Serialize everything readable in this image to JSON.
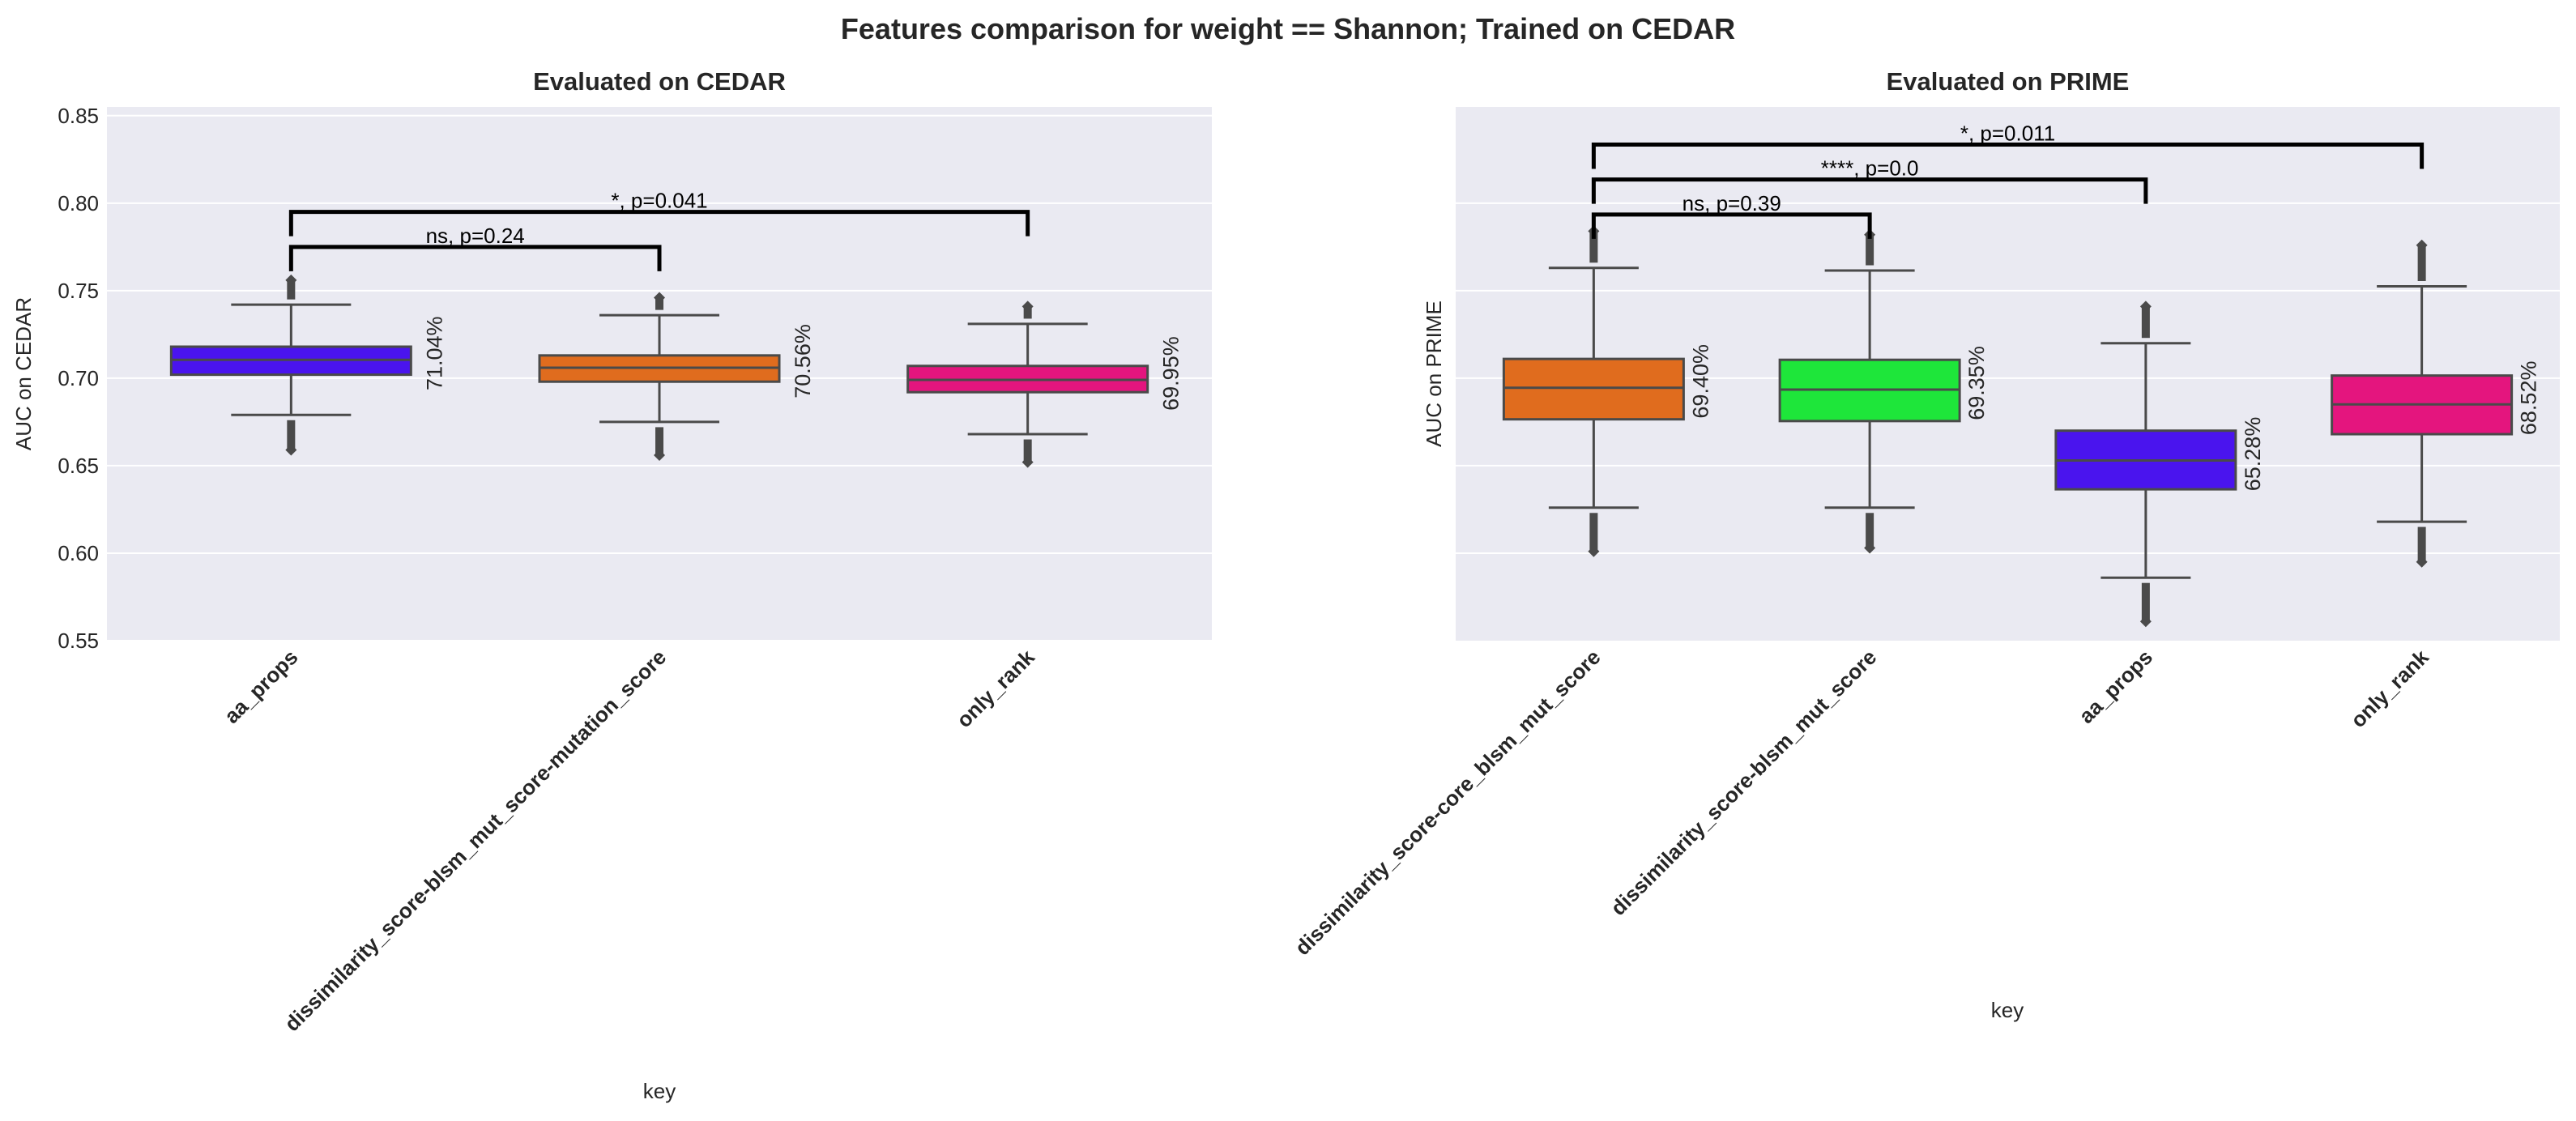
{
  "title": "Features comparison for weight == Shannon; Trained on CEDAR",
  "colors": {
    "background": "#eaeaf2",
    "grid": "#ffffff",
    "line": "#4a4a4a",
    "bracket": "#000000"
  },
  "chart_data": [
    {
      "type": "box",
      "title": "Evaluated on CEDAR",
      "xlabel": "key",
      "ylabel": "AUC on CEDAR",
      "ylim": [
        0.55,
        0.855
      ],
      "yticks": [
        0.55,
        0.6,
        0.65,
        0.7,
        0.75,
        0.8,
        0.85
      ],
      "ytick_labels": [
        "0.55",
        "0.60",
        "0.65",
        "0.70",
        "0.75",
        "0.80",
        "0.85"
      ],
      "categories": [
        "aa_props",
        "dissimilarity_score-blsm_mut_score-mutation_score",
        "only_rank"
      ],
      "boxes": [
        {
          "q1": 0.702,
          "median": 0.7105,
          "q3": 0.718,
          "whisker_low": 0.679,
          "whisker_high": 0.742,
          "fliers_low": [
            0.659,
            0.676
          ],
          "fliers_high": [
            0.745,
            0.756
          ],
          "color": "#4a14ee",
          "label": "71.04%"
        },
        {
          "q1": 0.698,
          "median": 0.706,
          "q3": 0.713,
          "whisker_low": 0.675,
          "whisker_high": 0.736,
          "fliers_low": [
            0.656,
            0.672
          ],
          "fliers_high": [
            0.739,
            0.746
          ],
          "color": "#e06c1e",
          "label": "70.56%"
        },
        {
          "q1": 0.692,
          "median": 0.699,
          "q3": 0.707,
          "whisker_low": 0.668,
          "whisker_high": 0.731,
          "fliers_low": [
            0.652,
            0.665
          ],
          "fliers_high": [
            0.734,
            0.741
          ],
          "color": "#e4157e",
          "label": "69.95%"
        }
      ],
      "annotations": [
        {
          "from": 0,
          "to": 1,
          "y": 0.775,
          "text": "ns, p=0.24"
        },
        {
          "from": 0,
          "to": 2,
          "y": 0.795,
          "text": "*, p=0.041"
        }
      ]
    },
    {
      "type": "box",
      "title": "Evaluated on PRIME",
      "xlabel": "key",
      "ylabel": "AUC on PRIME",
      "ylim": [
        0.55,
        0.855
      ],
      "yticks": [
        0.6,
        0.65,
        0.7,
        0.75,
        0.8
      ],
      "categories": [
        "dissimilarity_score-core_blsm_mut_score",
        "dissimilarity_score-blsm_mut_score",
        "aa_props",
        "only_rank"
      ],
      "boxes": [
        {
          "q1": 0.6765,
          "median": 0.6945,
          "q3": 0.711,
          "whisker_low": 0.626,
          "whisker_high": 0.763,
          "fliers_low": [
            0.601,
            0.623
          ],
          "fliers_high": [
            0.766,
            0.784
          ],
          "color": "#e06c1e",
          "label": "69.40%"
        },
        {
          "q1": 0.6755,
          "median": 0.6935,
          "q3": 0.7105,
          "whisker_low": 0.626,
          "whisker_high": 0.7615,
          "fliers_low": [
            0.603,
            0.623
          ],
          "fliers_high": [
            0.7645,
            0.782
          ],
          "color": "#1ee63a",
          "label": "69.35%"
        },
        {
          "q1": 0.6365,
          "median": 0.653,
          "q3": 0.67,
          "whisker_low": 0.586,
          "whisker_high": 0.72,
          "fliers_low": [
            0.561,
            0.583
          ],
          "fliers_high": [
            0.723,
            0.741
          ],
          "color": "#4a14ee",
          "label": "65.28%"
        },
        {
          "q1": 0.668,
          "median": 0.685,
          "q3": 0.7015,
          "whisker_low": 0.618,
          "whisker_high": 0.7525,
          "fliers_low": [
            0.595,
            0.615
          ],
          "fliers_high": [
            0.7555,
            0.776
          ],
          "color": "#e4157e",
          "label": "68.52%"
        }
      ],
      "annotations": [
        {
          "from": 0,
          "to": 1,
          "y": 0.7935,
          "text": "ns, p=0.39"
        },
        {
          "from": 0,
          "to": 2,
          "y": 0.8135,
          "text": "****, p=0.0"
        },
        {
          "from": 0,
          "to": 3,
          "y": 0.8335,
          "text": "*, p=0.011"
        }
      ]
    }
  ]
}
